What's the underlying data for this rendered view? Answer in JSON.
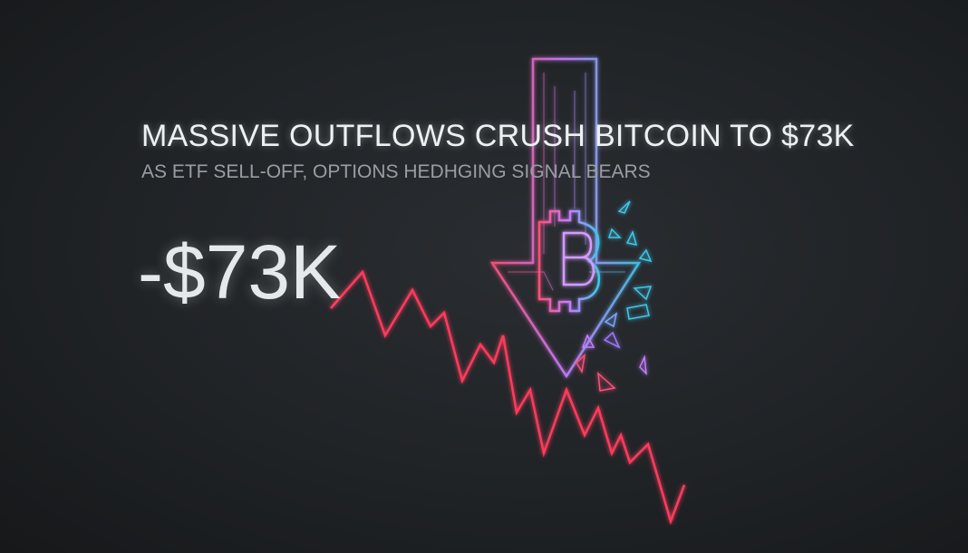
{
  "headline": "MASSIVE OUTFLOWS CRUSH BITCOIN TO $73K",
  "subheadline": "AS ETF SELL-OFF, OPTIONS HEDHGING  SIGNAL BEARS",
  "price_label": "-$73K",
  "icons": [
    "bitcoin-icon",
    "down-arrow-icon",
    "falling-price-line"
  ],
  "colors": {
    "background": "#1e2124",
    "chart_line": "#ff3b5c",
    "arrow_pink": "#ff4f7a",
    "arrow_cyan": "#3fc6e8",
    "bitcoin_purple": "#c77dff"
  }
}
